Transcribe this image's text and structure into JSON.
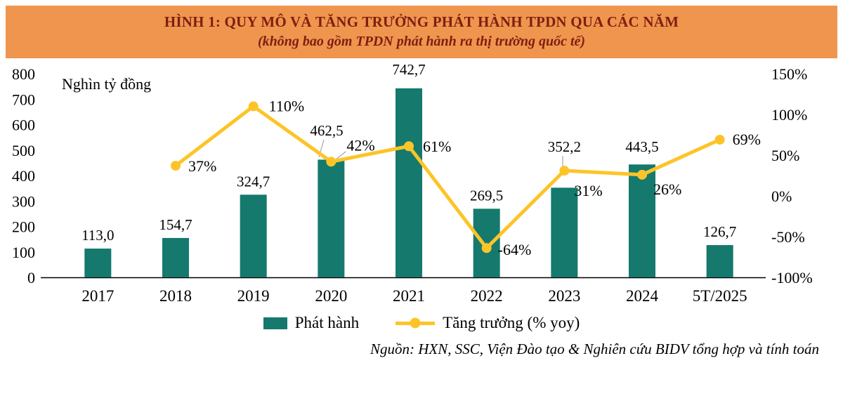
{
  "header": {
    "title": "HÌNH 1: QUY MÔ VÀ TĂNG TRƯỞNG PHÁT HÀNH TPDN QUA CÁC NĂM",
    "subtitle": "(không bao gồm TPDN phát hành ra thị trường quốc tế)"
  },
  "chart_data": {
    "type": "combo",
    "categories": [
      "2017",
      "2018",
      "2019",
      "2020",
      "2021",
      "2022",
      "2023",
      "2024",
      "5T/2025"
    ],
    "unit_label": "Nghìn tỷ đồng",
    "left_axis": {
      "min": 0,
      "max": 800,
      "ticks": [
        0,
        100,
        200,
        300,
        400,
        500,
        600,
        700,
        800
      ]
    },
    "right_axis": {
      "min": -100,
      "max": 150,
      "tick_values": [
        -100,
        -50,
        0,
        50,
        100,
        150
      ],
      "ticks": [
        "-100%",
        "-50%",
        "0%",
        "50%",
        "100%",
        "150%"
      ]
    },
    "grid": "off",
    "legend_position": "bottom",
    "series": [
      {
        "name": "Phát hành",
        "type": "bar",
        "color": "#15796D",
        "values": [
          113.0,
          154.7,
          324.7,
          462.5,
          742.7,
          269.5,
          352.2,
          443.5,
          126.7
        ],
        "labels": [
          "113,0",
          "154,7",
          "324,7",
          "462,5",
          "742,7",
          "269,5",
          "352,2",
          "443,5",
          "126,7"
        ]
      },
      {
        "name": "Tăng trưởng (% yoy)",
        "type": "line",
        "color": "#FDC428",
        "values": [
          null,
          37,
          110,
          42,
          61,
          -64,
          31,
          26,
          69
        ],
        "labels": [
          "",
          "37%",
          "110%",
          "42%",
          "61%",
          "-64%",
          "31%",
          "26%",
          "69%"
        ]
      }
    ]
  },
  "legend": {
    "bar_label": "Phát hành",
    "line_label": "Tăng trưởng (% yoy)"
  },
  "source": "Nguồn: HXN, SSC, Viện Đào tạo & Nghiên cứu BIDV tổng hợp và tính toán",
  "colors": {
    "header_bg": "#F0954E",
    "header_text": "#7D1F12",
    "bar": "#15796D",
    "line": "#FDC428",
    "value_label": "#3D3D3D"
  }
}
